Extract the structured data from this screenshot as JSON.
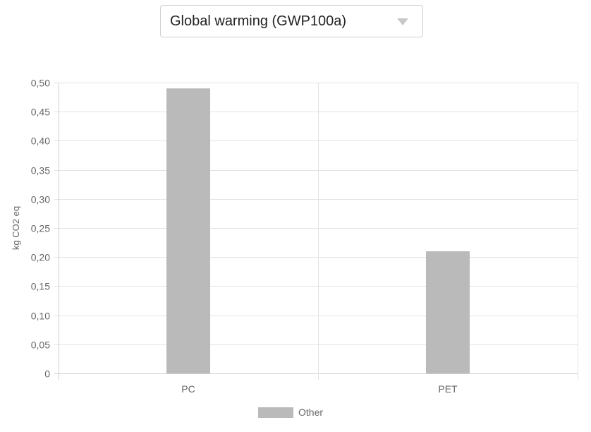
{
  "impact_selector": {
    "selected": "Global warming (GWP100a)",
    "arrow_icon": "dropdown-arrow-icon"
  },
  "chart_data": {
    "type": "bar",
    "categories": [
      "PC",
      "PET"
    ],
    "series": [
      {
        "name": "Other",
        "values": [
          0.49,
          0.21
        ],
        "color": "#bababa"
      }
    ],
    "ylabel": "kg CO2 eq",
    "xlabel": "",
    "ylim": [
      0,
      0.5
    ],
    "y_ticks": [
      "0",
      "0,05",
      "0,10",
      "0,15",
      "0,20",
      "0,25",
      "0,30",
      "0,35",
      "0,40",
      "0,45",
      "0,50"
    ],
    "grid": true,
    "legend_position": "bottom"
  }
}
